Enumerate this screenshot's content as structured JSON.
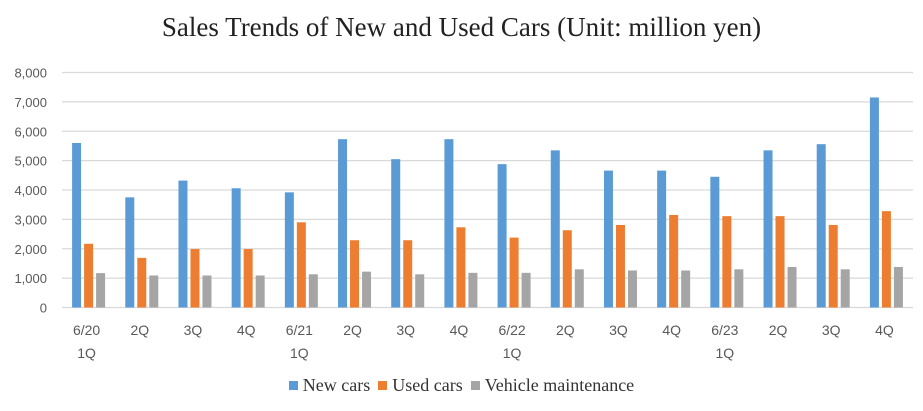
{
  "chart_data": {
    "type": "bar",
    "title": "Sales Trends of New and Used Cars (Unit: million yen)",
    "xlabel": "",
    "ylabel": "",
    "ylim": [
      0,
      8000
    ],
    "yticks": [
      0,
      1000,
      2000,
      3000,
      4000,
      5000,
      6000,
      7000,
      8000
    ],
    "ytick_labels": [
      "0",
      "1,000",
      "2,000",
      "3,000",
      "4,000",
      "5,000",
      "6,000",
      "7,000",
      "8,000"
    ],
    "grid": true,
    "legend_position": "bottom",
    "categories": [
      [
        "6/20",
        "1Q"
      ],
      [
        "2Q"
      ],
      [
        "3Q"
      ],
      [
        "4Q"
      ],
      [
        "6/21",
        "1Q"
      ],
      [
        "2Q"
      ],
      [
        "3Q"
      ],
      [
        "4Q"
      ],
      [
        "6/22",
        "1Q"
      ],
      [
        "2Q"
      ],
      [
        "3Q"
      ],
      [
        "4Q"
      ],
      [
        "6/23",
        "1Q"
      ],
      [
        "2Q"
      ],
      [
        "3Q"
      ],
      [
        "4Q"
      ]
    ],
    "series": [
      {
        "name": "New cars",
        "color": "#5B9BD5",
        "values": [
          5600,
          3750,
          4320,
          4060,
          3920,
          5730,
          5050,
          5730,
          4880,
          5350,
          4660,
          4660,
          4450,
          5350,
          5560,
          7150
        ]
      },
      {
        "name": "Used cars",
        "color": "#ED7D31",
        "values": [
          2170,
          1690,
          1990,
          1990,
          2900,
          2290,
          2290,
          2730,
          2380,
          2630,
          2810,
          3150,
          3110,
          3110,
          2810,
          3280
        ]
      },
      {
        "name": "Vehicle maintenance",
        "color": "#A5A5A5",
        "values": [
          1170,
          1090,
          1090,
          1090,
          1130,
          1220,
          1130,
          1180,
          1180,
          1300,
          1260,
          1260,
          1300,
          1380,
          1300,
          1380
        ]
      }
    ]
  }
}
